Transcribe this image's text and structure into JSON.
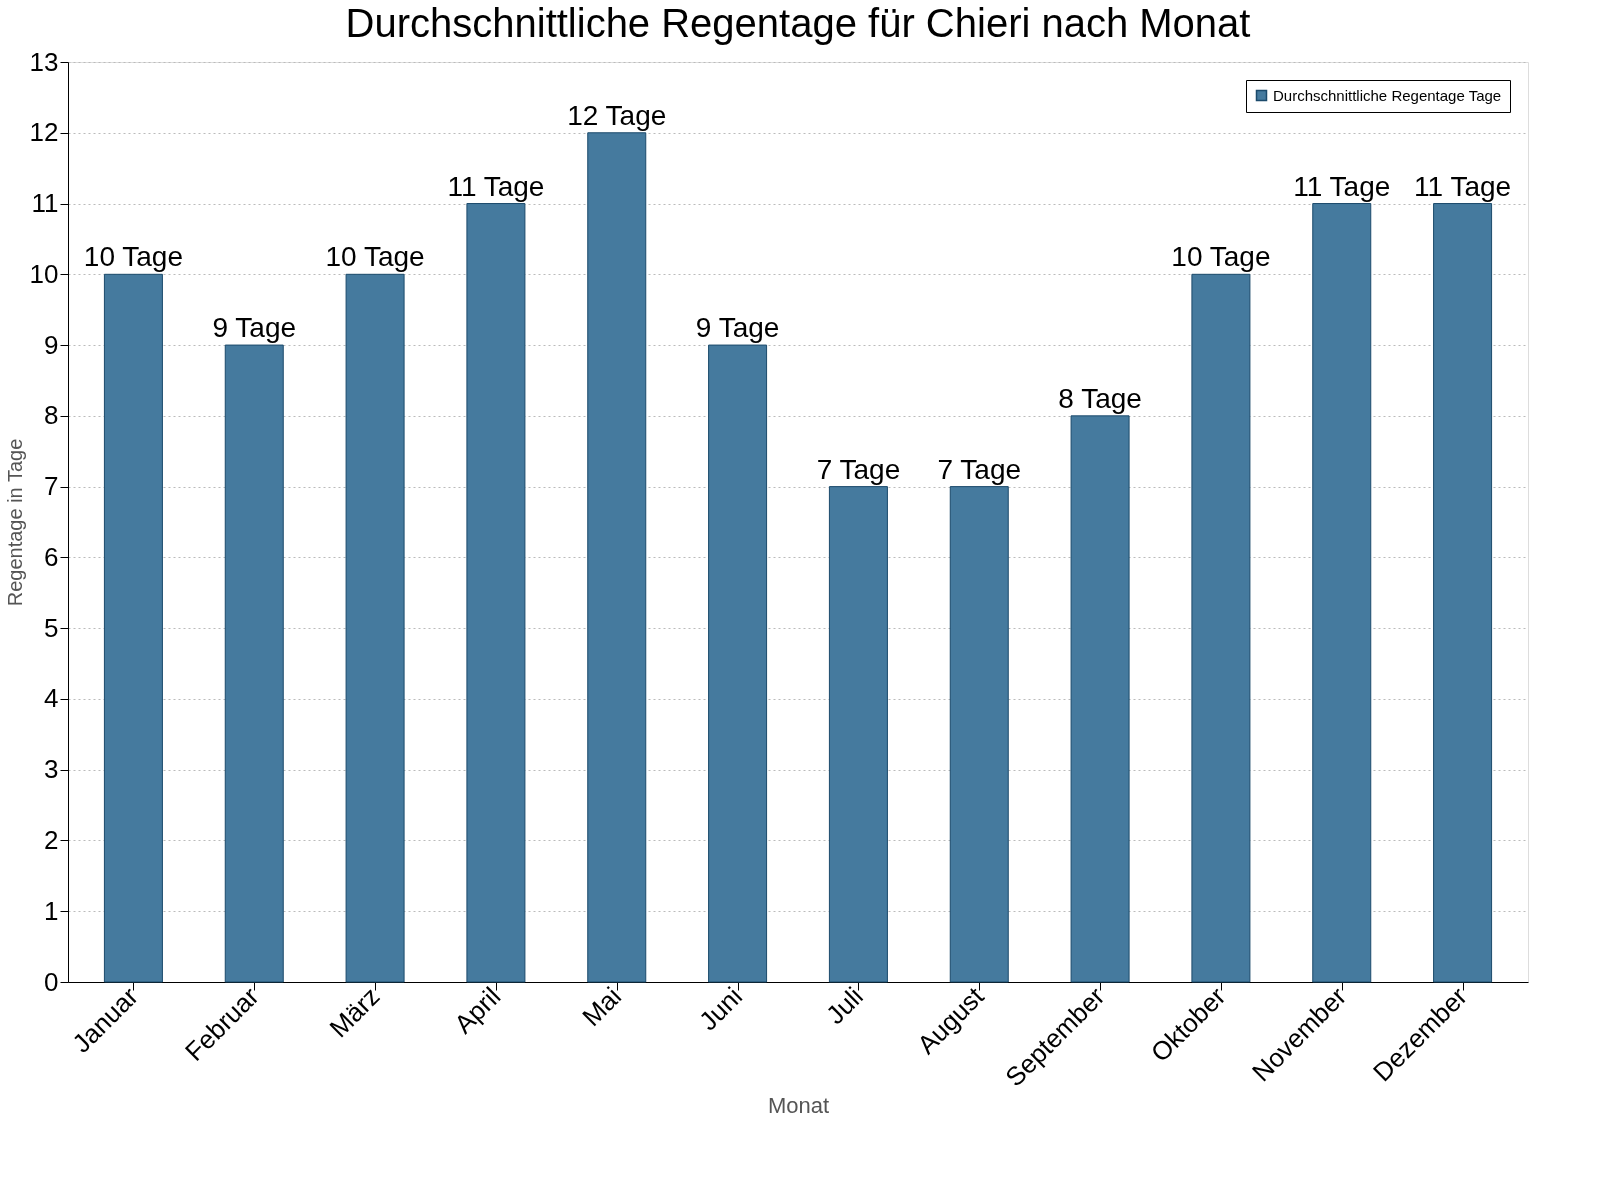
{
  "chart_data": {
    "type": "bar",
    "title": "Durchschnittliche Regentage für Chieri nach Monat",
    "xlabel": "Monat",
    "ylabel": "Regentage in Tage",
    "categories": [
      "Januar",
      "Februar",
      "März",
      "April",
      "Mai",
      "Juni",
      "Juli",
      "August",
      "September",
      "Oktober",
      "November",
      "Dezember"
    ],
    "series": [
      {
        "name": "Durchschnittliche Regentage Tage",
        "color": "#457a9e",
        "values": [
          10,
          9,
          10,
          11,
          12,
          9,
          7,
          7,
          8,
          10,
          11,
          11
        ],
        "value_labels": [
          "10 Tage",
          "9 Tage",
          "10 Tage",
          "11 Tage",
          "12 Tage",
          "9 Tage",
          "7 Tage",
          "7 Tage",
          "8 Tage",
          "10 Tage",
          "11 Tage",
          "11 Tage"
        ]
      }
    ],
    "ylim": [
      0,
      13
    ],
    "yticks": [
      0,
      1,
      2,
      3,
      4,
      5,
      6,
      7,
      8,
      9,
      10,
      11,
      12,
      13
    ],
    "grid": "y",
    "legend": "top right"
  }
}
